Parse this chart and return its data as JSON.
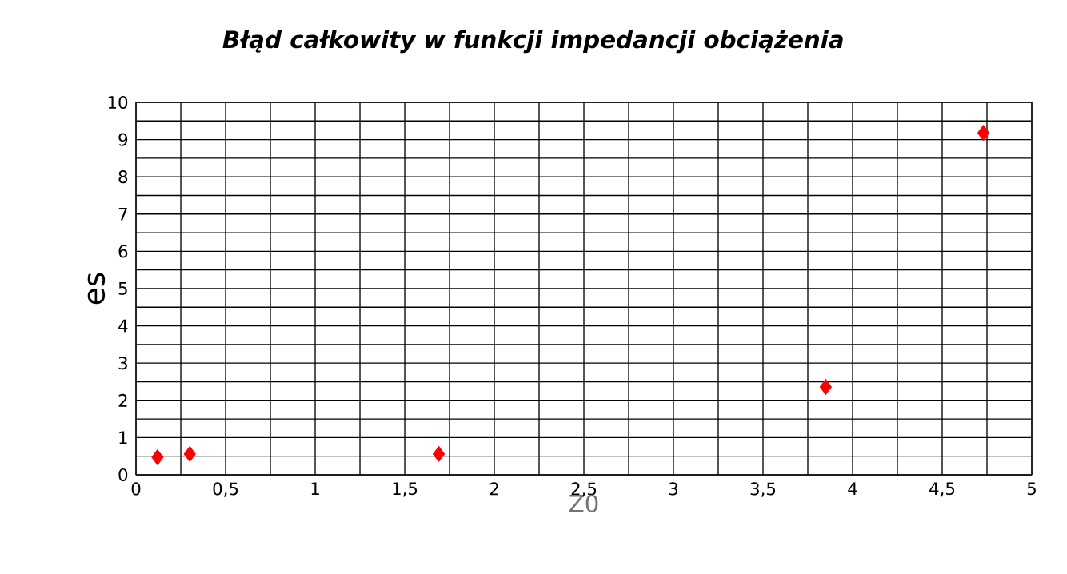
{
  "chart_data": {
    "type": "scatter",
    "title": "Błąd całkowity w funkcji impedancji obciążenia",
    "xlabel": "Z0",
    "ylabel": "es",
    "x": [
      0.12,
      0.3,
      1.69,
      3.85,
      4.73
    ],
    "series": [
      {
        "color": "#ff0000",
        "values": [
          0.47,
          0.56,
          0.56,
          2.36,
          9.18
        ]
      }
    ],
    "xlim": [
      0,
      5
    ],
    "ylim": [
      0,
      10
    ],
    "xticks": [
      0,
      {
        "value": 0.25,
        "label": null
      },
      {
        "value": 0.5,
        "label": "0,5"
      },
      {
        "value": 0.75,
        "label": null
      },
      1,
      {
        "value": 1.25,
        "label": null
      },
      {
        "value": 1.5,
        "label": "1,5"
      },
      {
        "value": 1.75,
        "label": null
      },
      2,
      {
        "value": 2.25,
        "label": null
      },
      {
        "value": 2.5,
        "label": "2,5"
      },
      {
        "value": 2.75,
        "label": null
      },
      3,
      {
        "value": 3.25,
        "label": null
      },
      {
        "value": 3.5,
        "label": "3,5"
      },
      {
        "value": 3.75,
        "label": null
      },
      4,
      {
        "value": 4.25,
        "label": null
      },
      {
        "value": 4.5,
        "label": "4,5"
      },
      {
        "value": 4.75,
        "label": null
      },
      5
    ],
    "yticks": [
      0,
      {
        "value": 0.5,
        "label": null
      },
      1,
      {
        "value": 1.5,
        "label": null
      },
      2,
      {
        "value": 2.5,
        "label": null
      },
      3,
      {
        "value": 3.5,
        "label": null
      },
      4,
      {
        "value": 4.5,
        "label": null
      },
      5,
      {
        "value": 5.5,
        "label": null
      },
      6,
      {
        "value": 6.5,
        "label": null
      },
      7,
      {
        "value": 7.5,
        "label": null
      },
      8,
      {
        "value": 8.5,
        "label": null
      },
      9,
      {
        "value": 9.5,
        "label": null
      },
      10
    ],
    "grid": true,
    "marker": "diamond"
  }
}
